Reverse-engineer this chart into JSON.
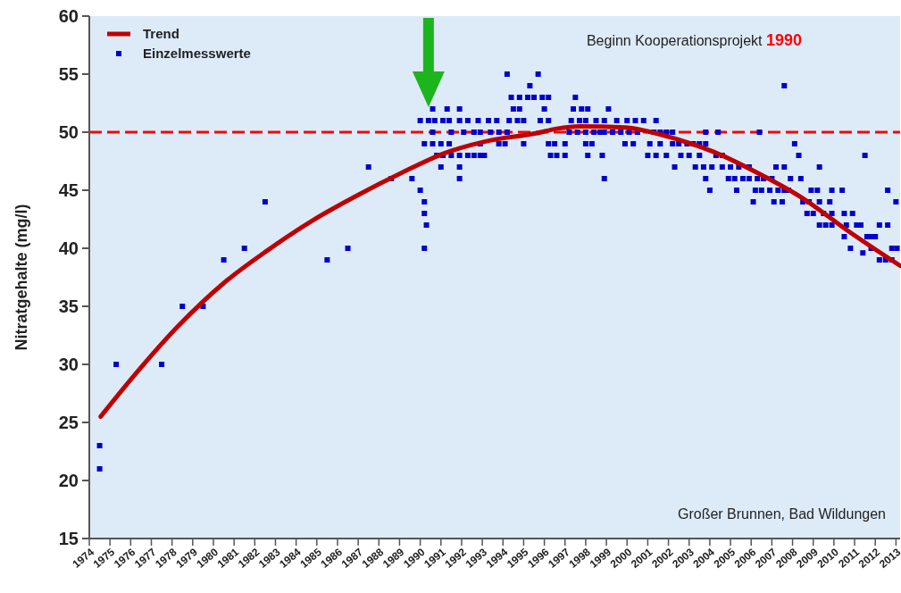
{
  "chart_data": {
    "type": "scatter",
    "ylabel": "Nitratgehalte (mg/l)",
    "annotations": [
      "Beginn Kooperationsprojekt 1990",
      "Großer Brunnen, Bad Wildungen"
    ],
    "xlim": [
      1974,
      2013.2
    ],
    "xticks": [
      1974,
      1975,
      1976,
      1977,
      1978,
      1979,
      1980,
      1981,
      1982,
      1983,
      1984,
      1985,
      1986,
      1987,
      1988,
      1989,
      1990,
      1991,
      1992,
      1993,
      1994,
      1995,
      1996,
      1997,
      1998,
      1999,
      2000,
      2001,
      2002,
      2003,
      2004,
      2005,
      2006,
      2007,
      2008,
      2009,
      2010,
      2011,
      2012,
      2013
    ],
    "ylim": [
      15,
      60
    ],
    "yticks": [
      15,
      20,
      25,
      30,
      35,
      40,
      45,
      50,
      55,
      60
    ],
    "grid": false,
    "legend": "top left",
    "ref_lines": [
      {
        "axis": "y",
        "value": 50,
        "color": "#ff0000",
        "line_style": "dashed"
      }
    ],
    "series": [
      {
        "name": "Trend",
        "type": "line",
        "color": "#c00000",
        "marker": "none",
        "x": [
          1974.55,
          1976.2,
          1978.3,
          1980.5,
          1982.6,
          1984.8,
          1986.9,
          1989.1,
          1991.2,
          1993.4,
          1995.6,
          1996.6,
          1997.7,
          1999.9,
          2002.0,
          2004.2,
          2006.3,
          2008.5,
          2010.6,
          2013.2
        ],
        "values": [
          25.5,
          29.1,
          33.3,
          37,
          39.8,
          42.4,
          44.5,
          46.5,
          48.2,
          49.3,
          49.9,
          50.3,
          50.5,
          50.4,
          49.6,
          48.3,
          46.5,
          44.3,
          41.6,
          38.5
        ]
      },
      {
        "name": "Einzelmesswerte",
        "type": "scatter",
        "color": "#0000cc",
        "marker": "square",
        "x": [
          1974.5,
          1974.5,
          1975.3,
          1977.5,
          1978.5,
          1979.5,
          1980.5,
          1981.5,
          1982.5,
          1985.5,
          1986.5,
          1987.5,
          1988.6,
          1989.6,
          1990.0,
          1990.2,
          1990.2,
          1990.3,
          1990.2,
          1990.6,
          1991.3,
          1991.9,
          1994.5,
          1994.8,
          1996.0,
          1997.4,
          1997.8,
          1998.1,
          1999.1,
          1990.0,
          1990.4,
          1990.7,
          1991.1,
          1991.4,
          1991.9,
          1992.3,
          1992.8,
          1993.3,
          1993.7,
          1994.3,
          1994.7,
          1995.0,
          1995.8,
          1996.2,
          1997.3,
          1997.7,
          1998.0,
          1998.5,
          1998.9,
          1999.5,
          2000.0,
          2000.4,
          2000.8,
          1990.6,
          1991.5,
          1992.1,
          1992.6,
          1992.9,
          1993.4,
          1993.8,
          1994.2,
          1997.2,
          1997.6,
          1998.0,
          1998.4,
          1998.7,
          1998.9,
          1999.3,
          1999.7,
          2000.1,
          2000.5,
          1990.2,
          1990.6,
          1991.0,
          1991.4,
          1992.9,
          1993.8,
          1994.1,
          1995.0,
          1996.2,
          1996.5,
          1997.0,
          1998.0,
          1998.3,
          1999.9,
          2000.3,
          1990.8,
          1991.1,
          1991.5,
          1991.9,
          1992.3,
          1992.6,
          1992.9,
          1993.1,
          1996.3,
          1996.6,
          1997.0,
          1998.1,
          1998.8,
          1991.0,
          1991.9,
          1991.9,
          1998.9,
          1994.4,
          1994.8,
          1995.2,
          1995.5,
          1995.9,
          1996.2,
          1997.5,
          1995.3,
          1994.2,
          1995.7,
          2001.4,
          2001.3,
          2001.6,
          2001.9,
          2002.2,
          2003.8,
          2004.4,
          2006.4,
          2001.1,
          2001.6,
          2002.2,
          2002.5,
          2002.9,
          2003.2,
          2003.5,
          2003.8,
          2008.1,
          2001.0,
          2001.4,
          2001.9,
          2002.6,
          2003.0,
          2003.5,
          2004.3,
          2004.6,
          2008.3,
          2011.5,
          2002.3,
          2003.3,
          2003.7,
          2004.1,
          2004.6,
          2005.0,
          2005.4,
          2005.9,
          2007.2,
          2007.6,
          2009.3,
          2003.8,
          2004.9,
          2005.2,
          2005.6,
          2005.9,
          2006.3,
          2006.6,
          2007.0,
          2007.9,
          2008.4,
          2004.0,
          2005.3,
          2006.2,
          2006.5,
          2006.9,
          2007.3,
          2007.6,
          2007.8,
          2008.9,
          2009.2,
          2009.9,
          2010.4,
          2012.6,
          2006.1,
          2007.1,
          2007.5,
          2008.5,
          2008.8,
          2009.3,
          2009.8,
          2013.0,
          2008.7,
          2009.0,
          2009.5,
          2009.9,
          2010.5,
          2010.9,
          2009.3,
          2009.6,
          2009.9,
          2010.6,
          2011.1,
          2011.3,
          2012.2,
          2012.6,
          2010.5,
          2011.6,
          2011.8,
          2012.0,
          2010.8,
          2011.8,
          2012.8,
          2013.05,
          2011.4,
          2012.2,
          2012.5,
          2012.8,
          2007.6
        ],
        "values": [
          23,
          21,
          30,
          30,
          35,
          35,
          39,
          40,
          44,
          39,
          40,
          47,
          46,
          46,
          45,
          44,
          43,
          42,
          40,
          52,
          52,
          52,
          52,
          52,
          52,
          52,
          52,
          52,
          52,
          51,
          51,
          51,
          51,
          51,
          51,
          51,
          51,
          51,
          51,
          51,
          51,
          51,
          51,
          51,
          51,
          51,
          51,
          51,
          51,
          51,
          51,
          51,
          51,
          50,
          50,
          50,
          50,
          50,
          50,
          50,
          50,
          50,
          50,
          50,
          50,
          50,
          50,
          50,
          50,
          50,
          50,
          49,
          49,
          49,
          49,
          49,
          49,
          49,
          49,
          49,
          49,
          49,
          49,
          49,
          49,
          49,
          48,
          48,
          48,
          48,
          48,
          48,
          48,
          48,
          48,
          48,
          48,
          48,
          48,
          47,
          47,
          46,
          46,
          53,
          53,
          53,
          53,
          53,
          53,
          53,
          54,
          55,
          55,
          51,
          50,
          50,
          50,
          50,
          50,
          50,
          50,
          49,
          49,
          49,
          49,
          49,
          49,
          49,
          49,
          49,
          48,
          48,
          48,
          48,
          48,
          48,
          48,
          48,
          48,
          48,
          47,
          47,
          47,
          47,
          47,
          47,
          47,
          47,
          47,
          47,
          47,
          46,
          46,
          46,
          46,
          46,
          46,
          46,
          46,
          46,
          46,
          45,
          45,
          45,
          45,
          45,
          45,
          45,
          45,
          45,
          45,
          45,
          45,
          45,
          44,
          44,
          44,
          44,
          44,
          44,
          44,
          44,
          43,
          43,
          43,
          43,
          43,
          43,
          42,
          42,
          42,
          42,
          42,
          42,
          42,
          42,
          41,
          41,
          41,
          41,
          40,
          40,
          40,
          40,
          39.6,
          39,
          39,
          39,
          54
        ]
      }
    ]
  }
}
